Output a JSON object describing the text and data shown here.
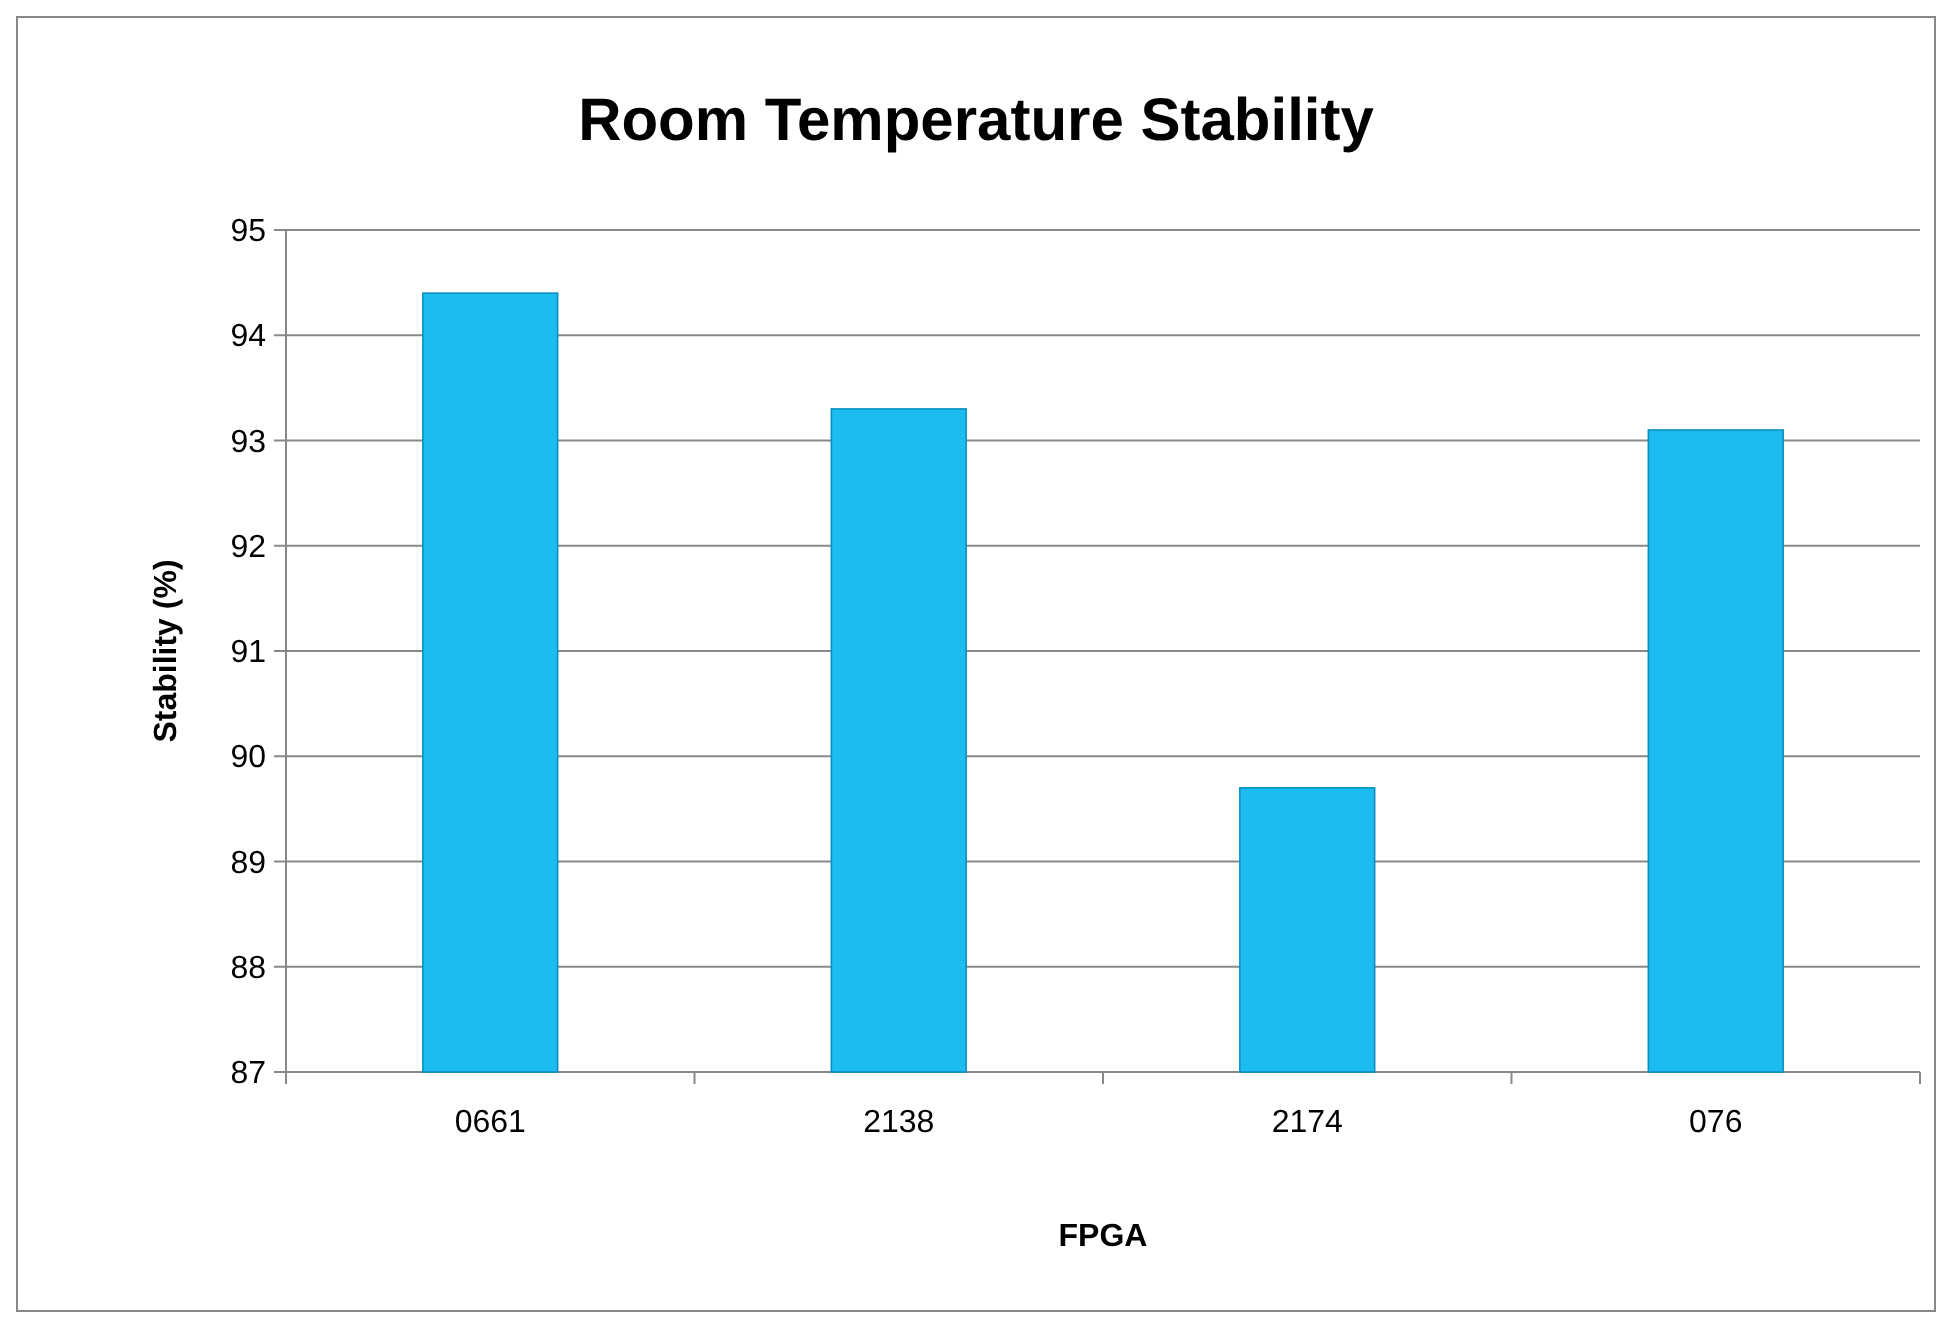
{
  "chart_data": {
    "type": "bar",
    "title": "Room Temperature Stability",
    "xlabel": "FPGA",
    "ylabel": "Stability (%)",
    "categories": [
      "0661",
      "2138",
      "2174",
      "076"
    ],
    "values": [
      94.4,
      93.3,
      89.7,
      93.1
    ],
    "color": "#1cbcf0",
    "ylim": [
      87,
      95
    ],
    "yticks": [
      87,
      88,
      89,
      90,
      91,
      92,
      93,
      94,
      95
    ],
    "grid": "y"
  }
}
